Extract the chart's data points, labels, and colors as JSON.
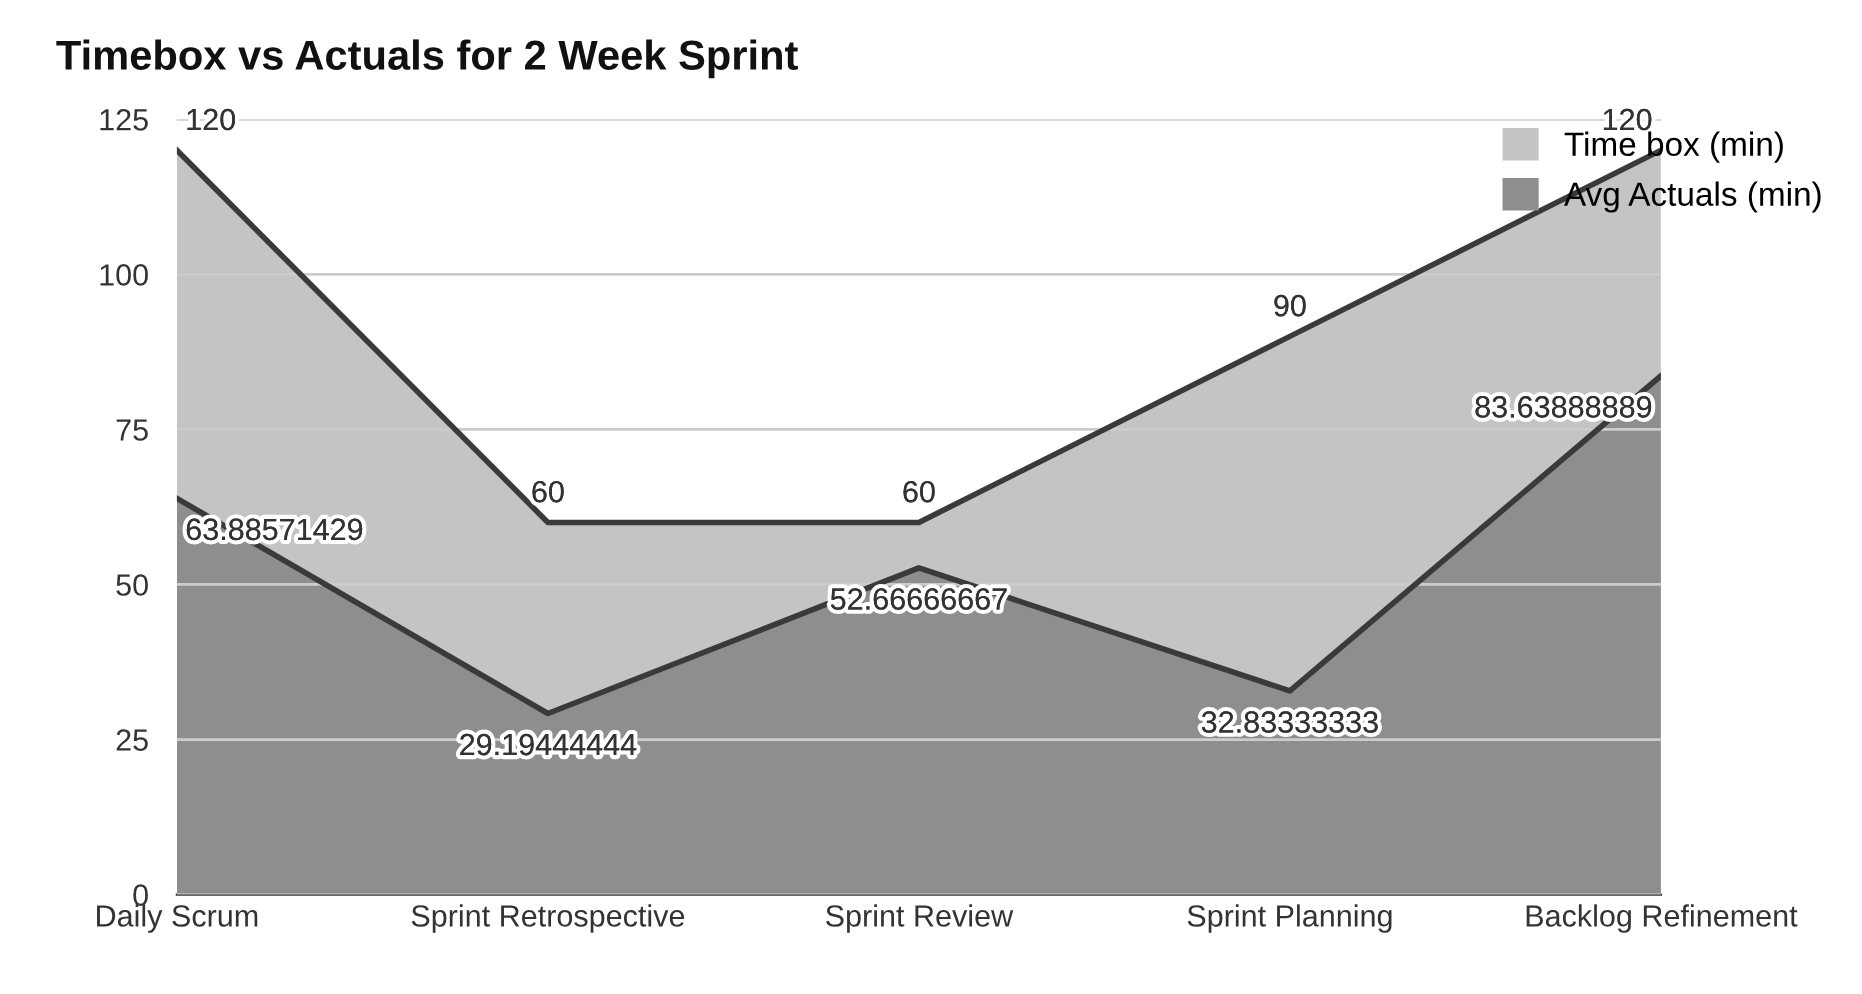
{
  "chart_data": {
    "type": "area",
    "title": "Timebox vs Actuals for 2 Week Sprint",
    "categories": [
      "Daily Scrum",
      "Sprint Retrospective",
      "Sprint Review",
      "Sprint Planning",
      "Backlog Refinement"
    ],
    "series": [
      {
        "name": "Time box (min)",
        "color": "#c4c4c4",
        "values": [
          120,
          60,
          60,
          90,
          120
        ]
      },
      {
        "name": "Avg Actuals (min)",
        "color": "#8e8e8e",
        "values": [
          63.88571429,
          29.19444444,
          52.66666667,
          32.83333333,
          83.63888889
        ]
      }
    ],
    "ylim": [
      0,
      125
    ],
    "yticks": [
      0,
      25,
      50,
      75,
      100,
      125
    ],
    "grid": "y",
    "legend": "top right",
    "data_labels": true
  }
}
